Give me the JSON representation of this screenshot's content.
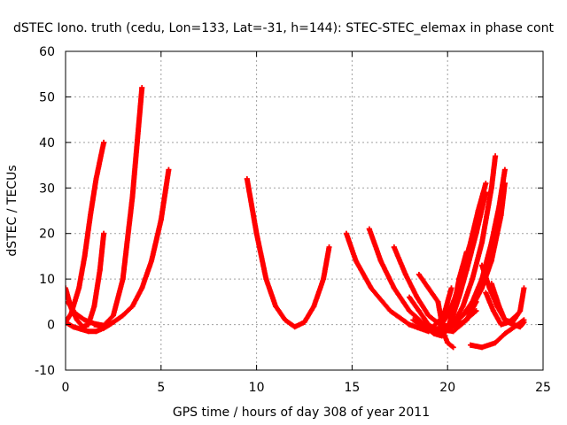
{
  "chart_data": {
    "type": "scatter",
    "title": "dSTEC Iono. truth (cedu, Lon=133, Lat=-31, h=144): STEC-STEC_elemax in phase cont",
    "xlabel": "GPS time / hours of day 308 of year 2011",
    "ylabel": "dSTEC  / TECUs",
    "xlim": [
      0,
      25
    ],
    "ylim": [
      -10,
      60
    ],
    "xticks": [
      0,
      5,
      10,
      15,
      20,
      25
    ],
    "yticks": [
      -10,
      0,
      10,
      20,
      30,
      40,
      50,
      60
    ],
    "grid": true,
    "marker": "+",
    "color": "#ff0000",
    "series": [
      {
        "x": [
          0.0,
          0.3,
          0.7,
          1.0,
          1.3,
          1.6,
          2.0
        ],
        "y": [
          0.5,
          2.5,
          8,
          15,
          24,
          32,
          40
        ]
      },
      {
        "x": [
          0.0,
          0.3,
          0.6,
          0.9,
          1.2,
          1.5,
          1.8,
          2.0
        ],
        "y": [
          8,
          3.5,
          1,
          -0.5,
          0,
          4,
          12,
          20
        ]
      },
      {
        "x": [
          0.0,
          0.4,
          0.8,
          1.2,
          1.6,
          2.0,
          2.4
        ],
        "y": [
          0.5,
          -0.5,
          -1,
          -1.5,
          -1.5,
          -0.8,
          0.2
        ]
      },
      {
        "x": [
          0.1,
          0.5,
          1.0,
          1.5,
          2.0,
          2.5,
          3.0,
          3.5,
          4.0
        ],
        "y": [
          5,
          2.5,
          1,
          0.2,
          -0.2,
          2,
          10,
          28,
          52
        ]
      },
      {
        "x": [
          1.5,
          2.0,
          2.5,
          3.0,
          3.5,
          4.0,
          4.5,
          5.0,
          5.4
        ],
        "y": [
          0,
          -0.5,
          0.5,
          2,
          4,
          8,
          14,
          23,
          34
        ]
      },
      {
        "x": [
          9.5,
          10.0,
          10.5,
          11.0,
          11.5,
          12.0,
          12.5,
          13.0,
          13.5,
          13.8
        ],
        "y": [
          32,
          20,
          10,
          4,
          1,
          -0.5,
          0.5,
          4,
          10,
          17
        ]
      },
      {
        "x": [
          14.7,
          15.2,
          16.0,
          17.0,
          18.0,
          19.0,
          19.8,
          20.2
        ],
        "y": [
          20,
          14,
          8,
          3,
          0,
          -1.5,
          2,
          8
        ]
      },
      {
        "x": [
          15.9,
          16.5,
          17.2,
          18.0,
          18.8,
          19.5,
          20.3,
          21.0,
          21.5
        ],
        "y": [
          21,
          14,
          8,
          3,
          0,
          -1,
          -1.5,
          1,
          5
        ]
      },
      {
        "x": [
          17.2,
          17.8,
          18.4,
          19.0,
          19.6,
          20.2,
          20.8,
          21.5
        ],
        "y": [
          17,
          11,
          6,
          2,
          0,
          -0.5,
          0.5,
          3
        ]
      },
      {
        "x": [
          18.0,
          18.5,
          19.0,
          19.5,
          19.8
        ],
        "y": [
          6,
          3,
          0,
          -1.5,
          -2
        ]
      },
      {
        "x": [
          18.5,
          19.0,
          19.5,
          19.8,
          20.0,
          20.3
        ],
        "y": [
          11,
          8,
          5,
          -2,
          -4,
          -5
        ]
      },
      {
        "x": [
          18.2,
          18.8,
          19.3,
          19.7,
          20.0,
          20.3,
          20.6,
          21.0
        ],
        "y": [
          1,
          -0.5,
          -2,
          -2.5,
          -1,
          3,
          10,
          16
        ]
      },
      {
        "x": [
          18.8,
          19.3,
          19.8,
          20.2,
          20.6,
          21.0,
          21.5,
          22.0
        ],
        "y": [
          0,
          -1.5,
          -2,
          1,
          6,
          12,
          20,
          29
        ]
      },
      {
        "x": [
          19.3,
          19.8,
          20.3,
          20.8,
          21.3,
          21.8,
          22.3,
          22.5
        ],
        "y": [
          -1,
          -1.5,
          0,
          4,
          10,
          18,
          30,
          37
        ]
      },
      {
        "x": [
          19.8,
          20.3,
          20.8,
          21.3,
          21.8,
          22.3,
          22.7,
          23.0
        ],
        "y": [
          -1,
          0,
          2,
          5,
          10,
          18,
          26,
          34
        ]
      },
      {
        "x": [
          20.3,
          20.8,
          21.3,
          21.8,
          22.3,
          22.8,
          23.0
        ],
        "y": [
          0,
          2,
          4,
          8,
          14,
          24,
          31
        ]
      },
      {
        "x": [
          19.6,
          20.0,
          20.4,
          20.8,
          21.2,
          21.6,
          22.0
        ],
        "y": [
          -0.5,
          2,
          6,
          12,
          18,
          25,
          31
        ]
      },
      {
        "x": [
          21.2,
          21.8,
          22.5,
          23.0,
          23.5,
          24.0
        ],
        "y": [
          -4.5,
          -5,
          -4,
          -2,
          -0.5,
          1
        ]
      },
      {
        "x": [
          21.8,
          22.2,
          22.6,
          23.0,
          23.4,
          23.8,
          24.0
        ],
        "y": [
          13,
          8,
          4,
          1,
          0.5,
          3,
          8
        ]
      },
      {
        "x": [
          22.3,
          22.7,
          23.0,
          23.4,
          23.8,
          24.0
        ],
        "y": [
          9,
          4,
          1,
          0,
          -0.5,
          0.5
        ]
      },
      {
        "x": [
          22.0,
          22.4,
          22.8,
          23.2,
          23.6
        ],
        "y": [
          7,
          3,
          0,
          0.5,
          2
        ]
      }
    ]
  }
}
